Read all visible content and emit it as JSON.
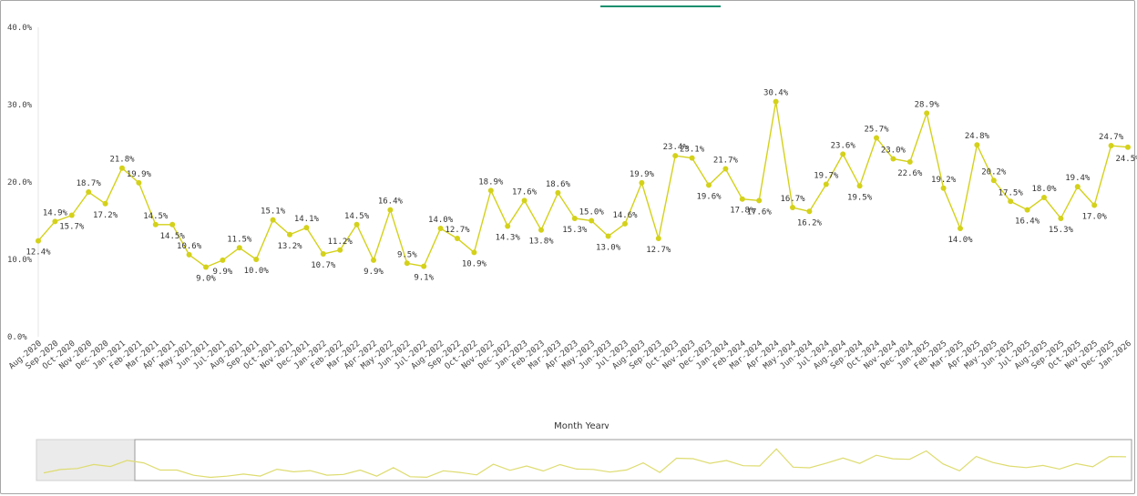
{
  "chart_data": {
    "type": "line",
    "xlabel": "Month Year",
    "ylabel": "",
    "ylim": [
      0,
      40
    ],
    "y_ticks": [
      "0.0%",
      "10.0%",
      "20.0%",
      "30.0%",
      "40.0%"
    ],
    "categories": [
      "Aug-2020",
      "Sep-2020",
      "Oct-2020",
      "Nov-2020",
      "Dec-2020",
      "Jan-2021",
      "Feb-2021",
      "Mar-2021",
      "Apr-2021",
      "May-2021",
      "Jun-2021",
      "Jul-2021",
      "Aug-2021",
      "Sep-2021",
      "Oct-2021",
      "Nov-2021",
      "Dec-2021",
      "Jan-2022",
      "Feb-2022",
      "Mar-2022",
      "Apr-2022",
      "May-2022",
      "Jun-2022",
      "Jul-2022",
      "Aug-2022",
      "Sep-2022",
      "Oct-2022",
      "Nov-2022",
      "Dec-2022",
      "Jan-2023",
      "Feb-2023",
      "Mar-2023",
      "Apr-2023",
      "May-2023",
      "Jun-2023",
      "Jul-2023",
      "Aug-2023",
      "Sep-2023",
      "Oct-2023",
      "Nov-2023",
      "Dec-2023",
      "Jan-2024",
      "Feb-2024",
      "Mar-2024",
      "Apr-2024",
      "May-2024",
      "Jun-2024",
      "Jul-2024",
      "Aug-2024",
      "Sep-2024",
      "Oct-2024",
      "Nov-2024",
      "Dec-2024",
      "Jan-2025",
      "Feb-2025",
      "Mar-2025",
      "Apr-2025",
      "May-2025",
      "Jun-2025",
      "Jul-2025",
      "Aug-2025",
      "Sep-2025",
      "Oct-2025",
      "Nov-2025",
      "Dec-2025",
      "Jan-2026"
    ],
    "points": [
      {
        "x": "Aug-2020",
        "y": 12.4
      },
      {
        "x": "Sep-2020",
        "y": 14.9
      },
      {
        "x": "Oct-2020",
        "y": 15.7
      },
      {
        "x": "Nov-2020",
        "y": 18.7
      },
      {
        "x": "Dec-2020",
        "y": 17.2
      },
      {
        "x": "Jan-2021",
        "y": 21.8
      },
      {
        "x": "Feb-2021",
        "y": 19.9
      },
      {
        "x": "Mar-2021",
        "y": 14.5
      },
      {
        "x": "Apr-2021",
        "y": 14.5
      },
      {
        "x": "May-2021",
        "y": 10.6
      },
      {
        "x": "Jun-2021",
        "y": 9.0
      },
      {
        "x": "Jul-2021",
        "y": 9.9
      },
      {
        "x": "Aug-2021",
        "y": 11.5
      },
      {
        "x": "Sep-2021",
        "y": 10.0
      },
      {
        "x": "Oct-2021",
        "y": 15.1
      },
      {
        "x": "Nov-2021",
        "y": 13.2
      },
      {
        "x": "Dec-2021",
        "y": 14.1
      },
      {
        "x": "Jan-2022",
        "y": 10.7
      },
      {
        "x": "Feb-2022",
        "y": 11.2
      },
      {
        "x": "Mar-2022",
        "y": 14.5
      },
      {
        "x": "Apr-2022",
        "y": 9.9
      },
      {
        "x": "May-2022",
        "y": 16.4
      },
      {
        "x": "Jun-2022",
        "y": 9.5
      },
      {
        "x": "Jul-2022",
        "y": 9.1
      },
      {
        "x": "Aug-2022",
        "y": 14.0
      },
      {
        "x": "Sep-2022",
        "y": 12.7
      },
      {
        "x": "Oct-2022",
        "y": 10.9
      },
      {
        "x": "Nov-2022",
        "y": 18.9
      },
      {
        "x": "Dec-2022",
        "y": 14.3
      },
      {
        "x": "Jan-2023",
        "y": 17.6
      },
      {
        "x": "Feb-2023",
        "y": 13.8
      },
      {
        "x": "Mar-2023",
        "y": 18.6
      },
      {
        "x": "Apr-2023",
        "y": 15.3
      },
      {
        "x": "May-2023",
        "y": 15.0
      },
      {
        "x": "Jun-2023",
        "y": 13.0
      },
      {
        "x": "Jul-2023",
        "y": 14.6
      },
      {
        "x": "Aug-2023",
        "y": 19.9
      },
      {
        "x": "Sep-2023",
        "y": 12.7
      },
      {
        "x": "Oct-2023",
        "y": 23.4
      },
      {
        "x": "Nov-2023",
        "y": 23.1
      },
      {
        "x": "Dec-2023",
        "y": 19.6
      },
      {
        "x": "Jan-2024",
        "y": 21.7
      },
      {
        "x": "Feb-2024",
        "y": 17.8
      },
      {
        "x": "Mar-2024",
        "y": 17.6
      },
      {
        "x": "Apr-2024",
        "y": 30.4
      },
      {
        "x": "May-2024",
        "y": 16.7
      },
      {
        "x": "Jun-2024",
        "y": 16.2
      },
      {
        "x": "Jul-2024",
        "y": 19.7
      },
      {
        "x": "Aug-2024",
        "y": 23.6
      },
      {
        "x": "Sep-2024",
        "y": 19.5
      },
      {
        "x": "Oct-2024",
        "y": 25.7
      },
      {
        "x": "Nov-2024",
        "y": 23.0
      },
      {
        "x": "Dec-2024",
        "y": 22.6
      },
      {
        "x": "Jan-2025",
        "y": 28.9
      },
      {
        "x": "Feb-2025",
        "y": 19.2
      },
      {
        "x": "Mar-2025",
        "y": 14.0
      },
      {
        "x": "Apr-2025",
        "y": 24.8
      },
      {
        "x": "May-2025",
        "y": 20.2
      },
      {
        "x": "Jun-2025",
        "y": 17.5
      },
      {
        "x": "Jul-2025",
        "y": 16.4
      },
      {
        "x": "Aug-2025",
        "y": 18.0
      },
      {
        "x": "Sep-2025",
        "y": 15.3
      },
      {
        "x": "Oct-2025",
        "y": 19.4
      },
      {
        "x": "Nov-2025",
        "y": 17.0
      },
      {
        "x": "Dec-2025",
        "y": 24.7
      },
      {
        "x": "Jan-2026",
        "y": 24.5
      }
    ],
    "data_labels": [
      "12.4%",
      "14.9%",
      "15.7%",
      "18.7%",
      "17.2%",
      "21.8%",
      "19.9%",
      "14.5%",
      "14.5%",
      "10.6%",
      "9.0%",
      "9.9%",
      "11.5%",
      "10.0%",
      "15.1%",
      "13.2%",
      "14.1%",
      "10.7%",
      "11.2%",
      "14.5%",
      "9.9%",
      "16.4%",
      "9.5%",
      "9.1%",
      "14.0%",
      "12.7%",
      "10.9%",
      "18.9%",
      "14.3%",
      "17.6%",
      "13.8%",
      "18.6%",
      "15.3%",
      "15.0%",
      "13.0%",
      "14.6%",
      "19.9%",
      "12.7%",
      "23.4%",
      "23.1%",
      "19.6%",
      "21.7%",
      "17.8%",
      "17.6%",
      "30.4%",
      "16.7%",
      "16.2%",
      "19.7%",
      "23.6%",
      "19.5%",
      "25.7%",
      "23.0%",
      "22.6%",
      "28.9%",
      "19.2%",
      "14.0%",
      "24.8%",
      "20.2%",
      "17.5%",
      "16.4%",
      "18.0%",
      "15.3%",
      "19.4%",
      "17.0%",
      "24.7%",
      "24.5%"
    ],
    "label_position": [
      "below",
      "above",
      "below",
      "above",
      "below",
      "above",
      "above",
      "above",
      "below",
      "above",
      "below",
      "below",
      "above",
      "below",
      "above",
      "below",
      "above",
      "below",
      "above",
      "above",
      "below",
      "above",
      "above",
      "below",
      "above",
      "above",
      "below",
      "above",
      "below",
      "above",
      "below",
      "above",
      "below",
      "above",
      "below",
      "above",
      "above",
      "below",
      "above",
      "above",
      "below",
      "above",
      "below",
      "below",
      "above",
      "above",
      "below",
      "above",
      "above",
      "below",
      "above",
      "above",
      "below",
      "above",
      "above",
      "below",
      "above",
      "above",
      "above",
      "below",
      "above",
      "below",
      "above",
      "below",
      "above",
      "below"
    ],
    "colors": {
      "line": "#d4d11a",
      "marker": "#d4d11a",
      "axis": "#e6e6e6",
      "tab_indicator": "#1a8f6e",
      "scroll_mask": "#ebebeb",
      "scroll_border": "#9b9b9b"
    },
    "grid": false
  },
  "axis_title": {
    "text": "Month Year",
    "chevron": "∨"
  },
  "icons": {
    "axis_sort": "chevron-down-icon"
  }
}
